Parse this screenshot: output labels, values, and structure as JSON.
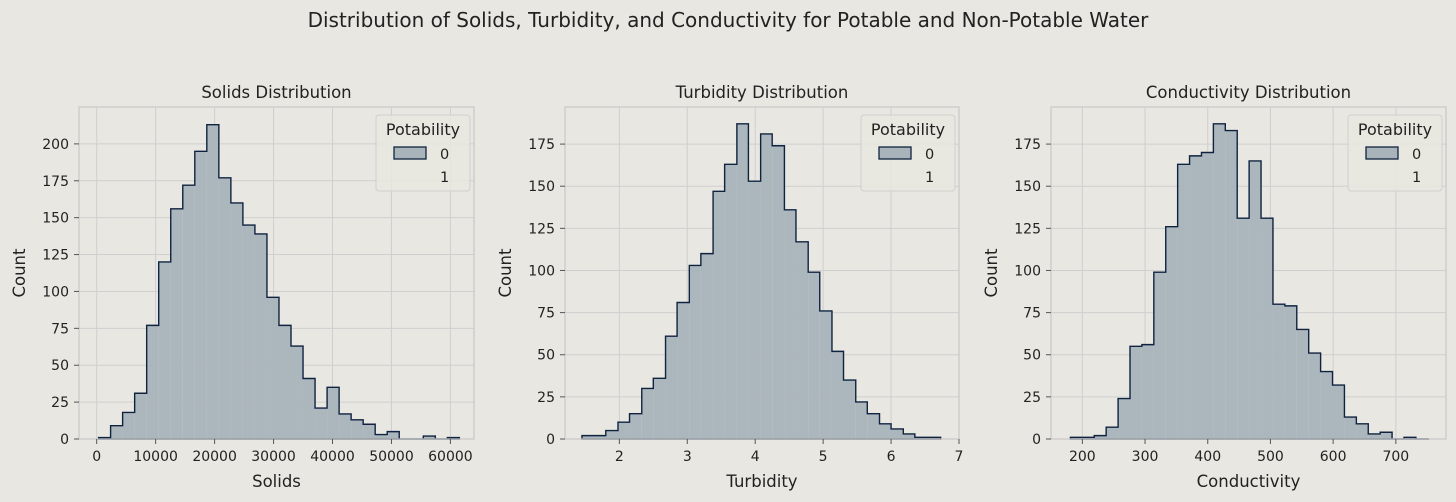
{
  "figure": {
    "suptitle": "Distribution of Solids, Turbidity, and Conductivity for Potable and Non-Potable Water",
    "background": "#e8e7e1",
    "plot_background": "#e8e7e1",
    "grid_color": "#cfcfcf",
    "edge_color": "#0f2340",
    "fill_color": "#a9b3ba"
  },
  "chart_data": [
    {
      "type": "bar",
      "histogram": true,
      "title": "Solids Distribution",
      "xlabel": "Solids",
      "ylabel": "Count",
      "xlim": [
        -3000,
        64000
      ],
      "ylim": [
        0,
        225
      ],
      "xticks": [
        0,
        10000,
        20000,
        30000,
        40000,
        50000,
        60000
      ],
      "xtick_labels": [
        "0",
        "10000",
        "20000",
        "30000",
        "40000",
        "50000",
        "60000"
      ],
      "yticks": [
        0,
        25,
        50,
        75,
        100,
        125,
        150,
        175,
        200
      ],
      "ytick_labels": [
        "0",
        "25",
        "50",
        "75",
        "100",
        "125",
        "150",
        "175",
        "200"
      ],
      "grid": true,
      "legend": {
        "title": "Potability",
        "entries": [
          "0",
          "1"
        ],
        "placement": "top-right"
      },
      "bin_edges": [
        320,
        2360,
        4400,
        6440,
        8480,
        10520,
        12560,
        14600,
        16640,
        18680,
        20720,
        22760,
        24800,
        26840,
        28880,
        30920,
        32960,
        35000,
        37040,
        39080,
        41120,
        43160,
        45200,
        47240,
        49280,
        51320,
        53360,
        55400,
        57440,
        59480,
        61520
      ],
      "series": [
        {
          "name": "0",
          "values": [
            1,
            9,
            18,
            31,
            77,
            120,
            156,
            172,
            195,
            213,
            177,
            160,
            145,
            139,
            96,
            77,
            63,
            41,
            21,
            35,
            17,
            13,
            10,
            3,
            5,
            0,
            0,
            2,
            0,
            1
          ]
        }
      ]
    },
    {
      "type": "bar",
      "histogram": true,
      "title": "Turbidity Distribution",
      "xlabel": "Turbidity",
      "ylabel": "Count",
      "xlim": [
        1.2,
        7.0
      ],
      "ylim": [
        0,
        197
      ],
      "xticks": [
        2,
        3,
        4,
        5,
        6,
        7
      ],
      "xtick_labels": [
        "2",
        "3",
        "4",
        "5",
        "6",
        "7"
      ],
      "yticks": [
        0,
        25,
        50,
        75,
        100,
        125,
        150,
        175
      ],
      "ytick_labels": [
        "0",
        "25",
        "50",
        "75",
        "100",
        "125",
        "150",
        "175"
      ],
      "grid": true,
      "legend": {
        "title": "Potability",
        "entries": [
          "0",
          "1"
        ],
        "placement": "top-right"
      },
      "bin_edges": [
        1.45,
        1.63,
        1.8,
        1.98,
        2.15,
        2.33,
        2.5,
        2.68,
        2.85,
        3.03,
        3.2,
        3.38,
        3.55,
        3.73,
        3.9,
        4.08,
        4.25,
        4.43,
        4.6,
        4.78,
        4.95,
        5.13,
        5.3,
        5.48,
        5.65,
        5.83,
        6.0,
        6.18,
        6.35,
        6.53,
        6.73
      ],
      "series": [
        {
          "name": "0",
          "values": [
            2,
            2,
            5,
            10,
            15,
            30,
            36,
            61,
            81,
            103,
            110,
            147,
            163,
            187,
            153,
            181,
            174,
            136,
            117,
            99,
            76,
            52,
            35,
            22,
            15,
            9,
            6,
            3,
            1,
            1
          ]
        }
      ]
    },
    {
      "type": "bar",
      "histogram": true,
      "title": "Conductivity Distribution",
      "xlabel": "Conductivity",
      "ylabel": "Count",
      "xlim": [
        150,
        780
      ],
      "ylim": [
        0,
        197
      ],
      "xticks": [
        200,
        300,
        400,
        500,
        600,
        700
      ],
      "xtick_labels": [
        "200",
        "300",
        "400",
        "500",
        "600",
        "700"
      ],
      "yticks": [
        0,
        25,
        50,
        75,
        100,
        125,
        150,
        175
      ],
      "ytick_labels": [
        "0",
        "25",
        "50",
        "75",
        "100",
        "125",
        "150",
        "175"
      ],
      "grid": true,
      "legend": {
        "title": "Potability",
        "entries": [
          "0",
          "1"
        ],
        "placement": "top-right"
      },
      "bin_edges": [
        181,
        200,
        219,
        238,
        257,
        276,
        295,
        314,
        333,
        352,
        371,
        390,
        409,
        428,
        447,
        466,
        485,
        504,
        523,
        542,
        561,
        580,
        599,
        618,
        637,
        656,
        675,
        694,
        713,
        732,
        753
      ],
      "series": [
        {
          "name": "0",
          "values": [
            1,
            1,
            2,
            7,
            24,
            55,
            56,
            99,
            126,
            163,
            168,
            170,
            187,
            183,
            131,
            165,
            131,
            80,
            79,
            65,
            51,
            40,
            32,
            13,
            9,
            3,
            4,
            0,
            1,
            0
          ]
        }
      ]
    }
  ]
}
